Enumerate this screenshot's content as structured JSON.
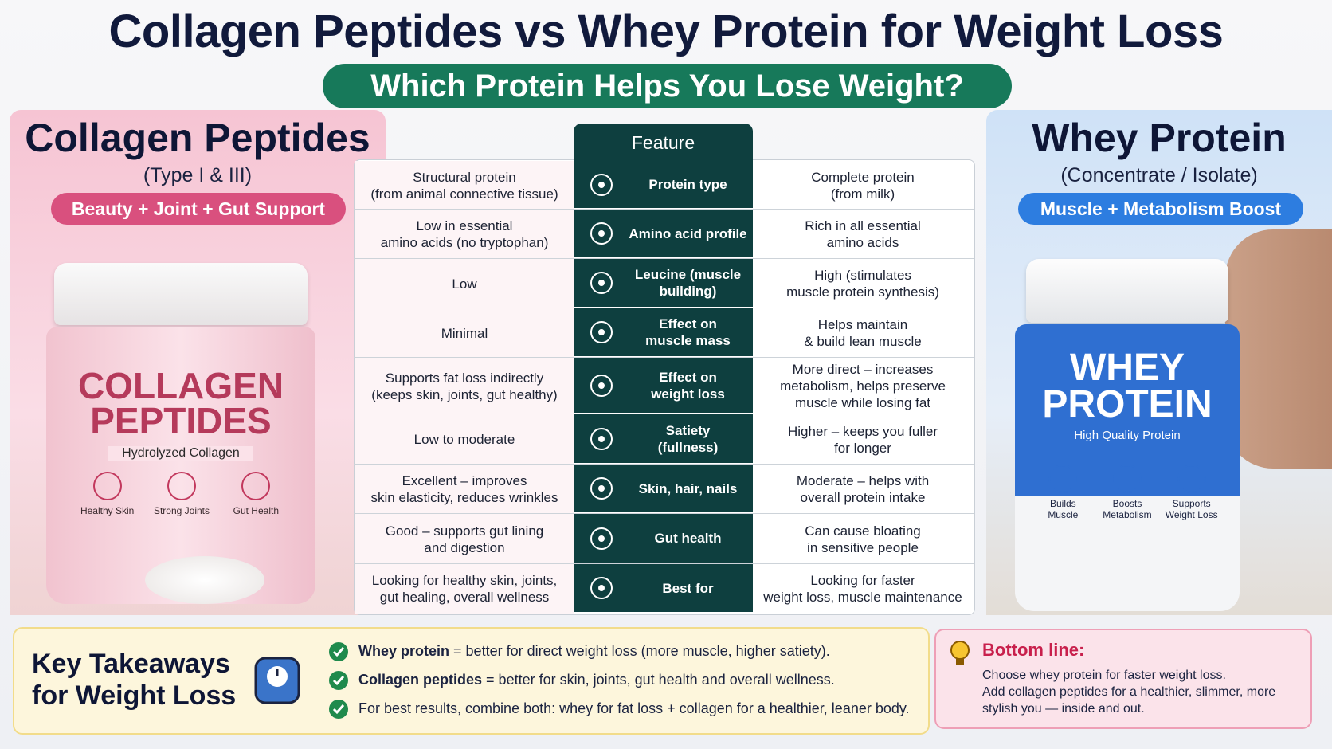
{
  "header": {
    "title": "Collagen Peptides vs Whey Protein for Weight Loss",
    "subtitle": "Which Protein Helps You Lose Weight?"
  },
  "collagen": {
    "title": "Collagen Peptides",
    "subtitle": "(Type I & III)",
    "tag": "Beauty + Joint + Gut Support",
    "jar_label": "COLLAGEN\nPEPTIDES",
    "jar_sublabel": "Hydrolyzed Collagen",
    "badges": [
      "Healthy Skin",
      "Strong Joints",
      "Gut Health"
    ]
  },
  "whey": {
    "title": "Whey Protein",
    "subtitle": "(Concentrate / Isolate)",
    "tag": "Muscle + Metabolism Boost",
    "jar_label": "WHEY\nPROTEIN",
    "jar_sublabel": "High Quality Protein",
    "badges": [
      "Builds\nMuscle",
      "Boosts\nMetabolism",
      "Supports\nWeight Loss"
    ]
  },
  "table": {
    "header": "Feature",
    "rows": [
      {
        "collagen": "Structural protein\n(from animal connective tissue)",
        "feature": "Protein type",
        "whey": "Complete protein\n(from milk)"
      },
      {
        "collagen": "Low in essential\namino acids (no tryptophan)",
        "feature": "Amino acid profile",
        "whey": "Rich in all essential\namino acids"
      },
      {
        "collagen": "Low",
        "feature": "Leucine (muscle\nbuilding)",
        "whey": "High (stimulates\nmuscle protein synthesis)"
      },
      {
        "collagen": "Minimal",
        "feature": "Effect on\nmuscle mass",
        "whey": "Helps maintain\n& build lean muscle"
      },
      {
        "collagen": "Supports fat loss indirectly\n(keeps skin, joints, gut healthy)",
        "feature": "Effect on\nweight loss",
        "whey": "More direct – increases\nmetabolism, helps preserve\nmuscle while losing fat"
      },
      {
        "collagen": "Low to moderate",
        "feature": "Satiety\n(fullness)",
        "whey": "Higher – keeps you fuller\nfor longer"
      },
      {
        "collagen": "Excellent – improves\nskin elasticity, reduces wrinkles",
        "feature": "Skin, hair, nails",
        "whey": "Moderate – helps with\noverall protein intake"
      },
      {
        "collagen": "Good – supports gut lining\nand digestion",
        "feature": "Gut health",
        "whey": "Can cause bloating\nin sensitive people"
      },
      {
        "collagen": "Looking for healthy skin, joints,\ngut healing, overall wellness",
        "feature": "Best for",
        "whey": "Looking for faster\nweight loss, muscle maintenance"
      }
    ]
  },
  "takeaways": {
    "title": "Key Takeaways\nfor Weight Loss",
    "items": [
      {
        "bold": "Whey protein",
        "text": "= better for direct weight loss (more muscle, higher satiety)."
      },
      {
        "bold": "Collagen peptides",
        "text": "= better for skin, joints, gut health and overall wellness."
      },
      {
        "text": "For best results, combine both: whey for fat loss + collagen for a healthier, leaner body."
      }
    ]
  },
  "bottom_line": {
    "title": "Bottom line:",
    "text": "Choose whey protein for faster weight loss.\nAdd collagen peptides for a healthier, slimmer, more\nstylish you — inside and out."
  }
}
